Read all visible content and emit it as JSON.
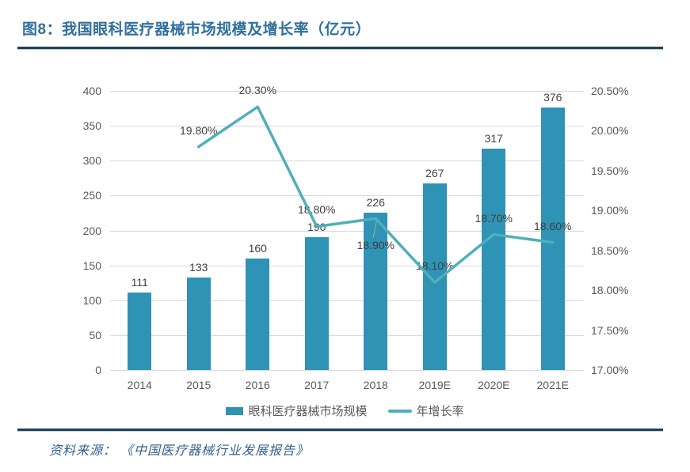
{
  "header": {
    "title": "图8：我国眼科医疗器械市场规模及增长率（亿元）"
  },
  "colors": {
    "bar": "#2e93b5",
    "line": "#4fafba",
    "grid": "#d9d9d9",
    "axis_text": "#595959",
    "data_label": "#404040",
    "title_text": "#2f6f9e",
    "rule": "#1f4154",
    "source_text": "#35608c",
    "leader": "#a6a6a6"
  },
  "chart_data": {
    "type": "bar",
    "title": "我国眼科医疗器械市场规模及增长率（亿元）",
    "categories": [
      "2014",
      "2015",
      "2016",
      "2017",
      "2018",
      "2019E",
      "2020E",
      "2021E"
    ],
    "series": [
      {
        "name": "眼科医疗器械市场规模",
        "type": "bar",
        "axis": "left",
        "values": [
          111,
          133,
          160,
          190,
          226,
          267,
          317,
          376
        ],
        "labels": [
          "111",
          "133",
          "160",
          "190",
          "226",
          "267",
          "317",
          "376"
        ]
      },
      {
        "name": "年增长率",
        "type": "line",
        "axis": "right",
        "values": [
          null,
          19.8,
          20.3,
          18.8,
          18.9,
          18.1,
          18.7,
          18.6
        ],
        "labels": [
          "",
          "19.80%",
          "20.30%",
          "18.80%",
          "18.90%",
          "18.10%",
          "18.70%",
          "18.60%"
        ],
        "label_positions": [
          "",
          "above",
          "above",
          "above",
          "below",
          "above",
          "above",
          "above"
        ]
      }
    ],
    "left_axis": {
      "min": 0,
      "max": 400,
      "step": 50,
      "ticks": [
        "400",
        "350",
        "300",
        "250",
        "200",
        "150",
        "100",
        "50",
        "0"
      ]
    },
    "right_axis": {
      "min": 17,
      "max": 20.5,
      "step": 0.5,
      "ticks": [
        "20.50%",
        "20.00%",
        "19.50%",
        "19.00%",
        "18.50%",
        "18.00%",
        "17.50%",
        "17.00%"
      ]
    },
    "grid": true,
    "legend_position": "bottom"
  },
  "legend": {
    "items": [
      {
        "label": "眼科医疗器械市场规模"
      },
      {
        "label": "年增长率"
      }
    ]
  },
  "footer": {
    "source_prefix": "资料来源：",
    "source_name": "《中国医疗器械行业发展报告》"
  }
}
